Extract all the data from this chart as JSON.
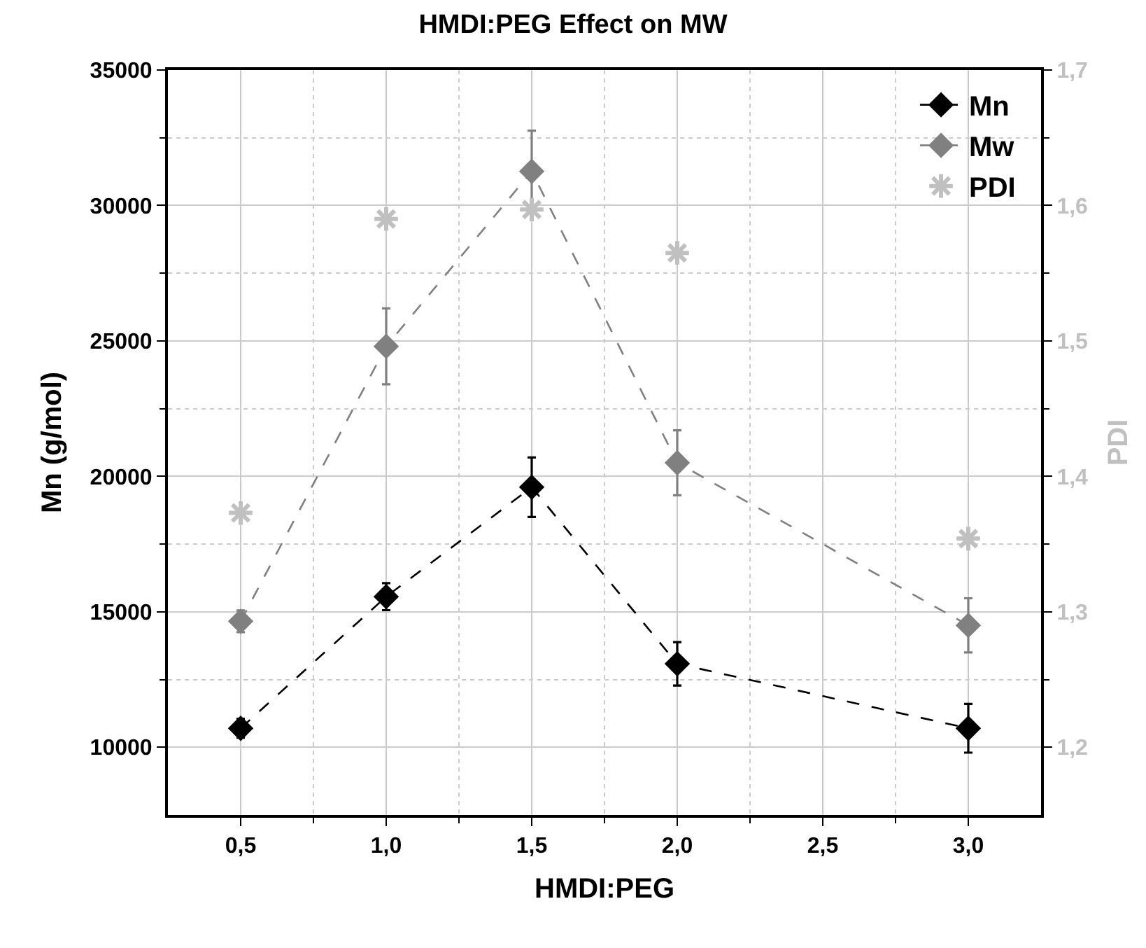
{
  "chart_data": {
    "type": "scatter",
    "title": "HMDI:PEG Effect on MW",
    "xlabel": "HMDI:PEG",
    "ylabel": "Mn (g/mol)",
    "y2label": "PDI",
    "x": [
      0.5,
      1.0,
      1.5,
      2.0,
      3.0
    ],
    "series": [
      {
        "name": "Mn",
        "type": "line",
        "color": "#000000",
        "marker": "diamond",
        "line_style": "dashed",
        "values": [
          10700,
          15560,
          19600,
          13080,
          10700
        ],
        "errors": [
          350,
          500,
          1100,
          800,
          900
        ]
      },
      {
        "name": "Mw",
        "type": "line",
        "color": "#808080",
        "marker": "diamond",
        "line_style": "dashed",
        "values": [
          14650,
          24800,
          31260,
          20500,
          14500
        ],
        "errors": [
          400,
          1400,
          1500,
          1200,
          1000
        ]
      },
      {
        "name": "PDI",
        "color": "#c0c0c0",
        "marker": "cross",
        "axis": "y2",
        "values": [
          1.373,
          1.59,
          1.597,
          1.565,
          1.354
        ]
      }
    ],
    "xlim": [
      0.25,
      3.25
    ],
    "xticks": [
      {
        "value": 0.5,
        "label": "0,5"
      },
      {
        "value": 0.75,
        "label": null
      },
      {
        "value": 1.0,
        "label": "1,0"
      },
      {
        "value": 1.25,
        "label": null
      },
      {
        "value": 1.5,
        "label": "1,5"
      },
      {
        "value": 1.75,
        "label": null
      },
      {
        "value": 2.0,
        "label": "2,0"
      },
      {
        "value": 2.25,
        "label": null
      },
      {
        "value": 2.5,
        "label": "2,5"
      },
      {
        "value": 2.75,
        "label": null
      },
      {
        "value": 3.0,
        "label": "3,0"
      }
    ],
    "ylim": [
      7500,
      35000
    ],
    "yticks": [
      10000,
      {
        "value": 12500,
        "label": null
      },
      15000,
      {
        "value": 17500,
        "label": null
      },
      20000,
      {
        "value": 22500,
        "label": null
      },
      25000,
      {
        "value": 27500,
        "label": null
      },
      30000,
      {
        "value": 32500,
        "label": null
      },
      35000
    ],
    "y2lim": [
      1.15,
      1.7
    ],
    "y2ticks": [
      {
        "value": 1.2,
        "label": "1,2"
      },
      {
        "value": 1.25,
        "label": null
      },
      {
        "value": 1.3,
        "label": "1,3"
      },
      {
        "value": 1.35,
        "label": null
      },
      {
        "value": 1.4,
        "label": "1,4"
      },
      {
        "value": 1.45,
        "label": null
      },
      {
        "value": 1.5,
        "label": "1,5"
      },
      {
        "value": 1.55,
        "label": null
      },
      {
        "value": 1.6,
        "label": "1,6"
      },
      {
        "value": 1.65,
        "label": null
      },
      {
        "value": 1.7,
        "label": "1,7"
      }
    ],
    "grid": true,
    "legend": "top right"
  }
}
